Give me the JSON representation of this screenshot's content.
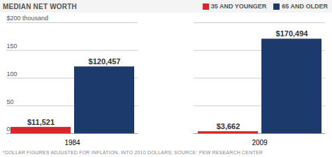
{
  "chart_data": {
    "type": "bar",
    "title": "MEDIAN NET WORTH",
    "caption": "*DOLLAR FIGURES ADJUSTED FOR INFLATION, INTO 2010 DOLLARS; SOURCE: PEW RESEARCH CENTER",
    "categories": [
      "1984",
      "2009"
    ],
    "series": [
      {
        "name": "35 AND YOUNGER",
        "color": "#d9262c",
        "values": [
          11.521,
          3.662
        ],
        "value_labels": [
          "$11,521",
          "$3,662"
        ]
      },
      {
        "name": "65 AND OLDER",
        "color": "#1d3a6d",
        "values": [
          120.457,
          170.494
        ],
        "value_labels": [
          "$120,457",
          "$170,494"
        ]
      }
    ],
    "ylim": [
      0,
      200
    ],
    "yticks": [
      0,
      50,
      100,
      150,
      {
        "value": 200,
        "label": "$200 thousand"
      }
    ],
    "grid": true,
    "legend": "top-right",
    "data_labels": true
  }
}
